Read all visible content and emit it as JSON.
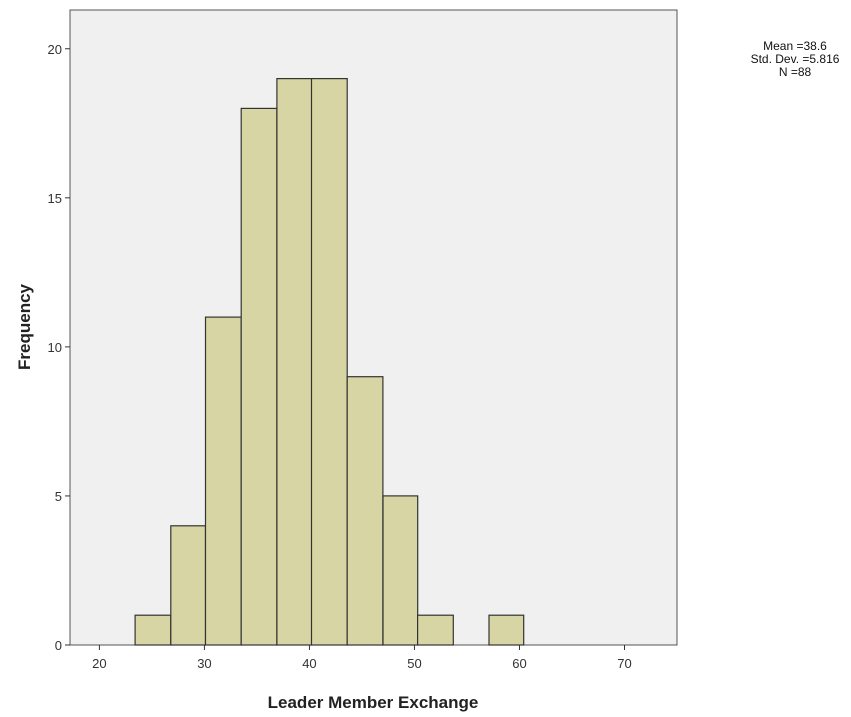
{
  "chart_data": {
    "type": "bar",
    "xlabel": "Leader Member Exchange",
    "ylabel": "Frequency",
    "bin_edges": [
      23.4,
      26.8,
      30.1,
      33.5,
      36.9,
      40.2,
      43.6,
      47.0,
      50.3,
      53.7,
      57.1,
      60.4
    ],
    "values": [
      1,
      4,
      11,
      18,
      19,
      19,
      9,
      5,
      1,
      0,
      1
    ],
    "xlim": [
      17.2,
      75.0
    ],
    "ylim": [
      0,
      21.3
    ],
    "xticks": [
      20,
      30,
      40,
      50,
      60,
      70
    ],
    "yticks": [
      0,
      5,
      10,
      15,
      20
    ],
    "grid": false,
    "legend": "none",
    "stats": {
      "mean": "Mean =38.6",
      "std": "Std. Dev. =5.816",
      "n": "N =88"
    },
    "colors": {
      "plot_background": "#f0f0f0",
      "bar_fill": "#d8d5a4",
      "bar_stroke": "#333333"
    }
  }
}
